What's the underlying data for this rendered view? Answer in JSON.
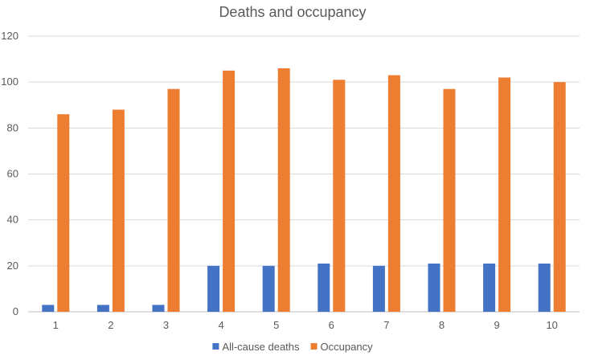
{
  "chart_data": {
    "type": "bar",
    "title": "Deaths and occupancy",
    "categories": [
      "1",
      "2",
      "3",
      "4",
      "5",
      "6",
      "7",
      "8",
      "9",
      "10"
    ],
    "series": [
      {
        "name": "All-cause deaths",
        "color": "#4472c4",
        "values": [
          3,
          3,
          3,
          20,
          20,
          21,
          20,
          21,
          21,
          21
        ]
      },
      {
        "name": "Occupancy",
        "color": "#ed7d31",
        "values": [
          86,
          88,
          97,
          105,
          106,
          101,
          103,
          97,
          102,
          100
        ]
      }
    ],
    "xlabel": "",
    "ylabel": "",
    "ylim": [
      0,
      120
    ],
    "yticks": [
      0,
      20,
      40,
      60,
      80,
      100,
      120
    ],
    "grid": true,
    "legend": "bottom"
  }
}
